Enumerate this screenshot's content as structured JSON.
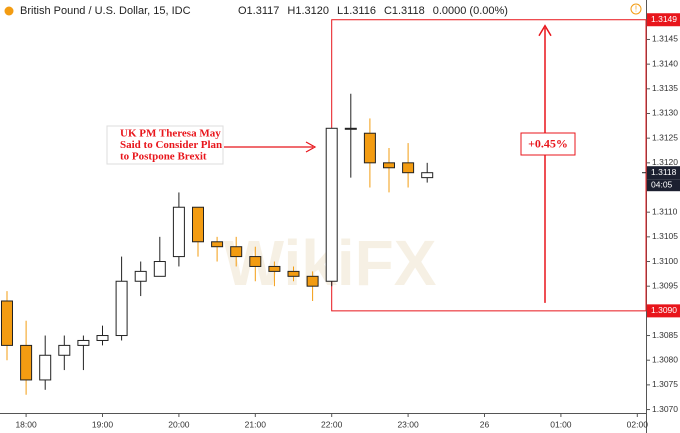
{
  "chart_data": {
    "type": "candlestick",
    "title": "British Pound / U.S. Dollar, 15, IDC",
    "header_values": [
      "O1.3117",
      "H1.3120",
      "L1.3116",
      "C1.3118",
      "0.0000 (0.00%)"
    ],
    "categories": [
      null,
      "18:00",
      null,
      null,
      null,
      "19:00",
      null,
      null,
      null,
      "20:00",
      null,
      null,
      null,
      "21:00",
      null,
      null,
      null,
      "22:00",
      null,
      null,
      null,
      "23:00",
      null,
      null,
      null,
      "26",
      null,
      null,
      null,
      "01:00",
      null,
      null,
      null,
      "02:00"
    ],
    "open": [
      1.3092,
      1.3083,
      1.3076,
      1.3081,
      1.3083,
      1.3084,
      1.3085,
      1.3096,
      1.3097,
      1.3101,
      1.3111,
      1.3104,
      1.3103,
      1.3101,
      1.3099,
      1.3098,
      1.3097,
      1.3096,
      1.3127,
      1.3126,
      1.312,
      1.312,
      1.3117,
      null,
      null,
      null,
      null,
      null,
      null,
      null,
      null,
      null,
      null,
      null
    ],
    "high": [
      1.3094,
      1.3088,
      1.3085,
      1.3085,
      1.3085,
      1.3087,
      1.3101,
      1.31,
      1.3105,
      1.3114,
      1.3111,
      1.3105,
      1.3105,
      1.3103,
      1.31,
      1.3099,
      1.3098,
      1.3127,
      1.3134,
      1.3129,
      1.3123,
      1.3124,
      1.312,
      null,
      null,
      null,
      null,
      null,
      null,
      null,
      null,
      null,
      null,
      null
    ],
    "low": [
      1.308,
      1.3073,
      1.3074,
      1.3078,
      1.3078,
      1.3083,
      1.3084,
      1.3093,
      1.3097,
      1.3099,
      1.3101,
      1.31,
      1.3099,
      1.3096,
      1.3095,
      1.3096,
      1.3092,
      1.3095,
      1.3117,
      1.3115,
      1.3114,
      1.3115,
      1.3116,
      null,
      null,
      null,
      null,
      null,
      null,
      null,
      null,
      null,
      null,
      null
    ],
    "close": [
      1.3083,
      1.3076,
      1.3081,
      1.3083,
      1.3084,
      1.3085,
      1.3096,
      1.3098,
      1.31,
      1.3111,
      1.3104,
      1.3103,
      1.3101,
      1.3099,
      1.3098,
      1.3097,
      1.3095,
      1.3127,
      1.3127,
      1.312,
      1.3119,
      1.3118,
      1.3118,
      null,
      null,
      null,
      null,
      null,
      null,
      null,
      null,
      null,
      null,
      null
    ],
    "up_color": "#ffffff",
    "down_color": "#f39c12",
    "ylim": [
      1.30693,
      1.3153
    ],
    "yticks": [
      {
        "value": 1.307,
        "label": "1.3070"
      },
      {
        "value": 1.3075,
        "label": "1.3075"
      },
      {
        "value": 1.308,
        "label": "1.3080"
      },
      {
        "value": 1.3085,
        "label": "1.3085"
      },
      {
        "value": 1.309,
        "label": "1.3090"
      },
      {
        "value": 1.3095,
        "label": "1.3095"
      },
      {
        "value": 1.31,
        "label": "1.3100"
      },
      {
        "value": 1.3105,
        "label": "1.3105"
      },
      {
        "value": 1.311,
        "label": "1.3110"
      },
      {
        "value": 1.3115,
        "label": "1.3115"
      },
      {
        "value": 1.312,
        "label": "1.3120"
      },
      {
        "value": 1.3125,
        "label": "1.3125"
      },
      {
        "value": 1.313,
        "label": "1.3130"
      },
      {
        "value": 1.3135,
        "label": "1.3135"
      },
      {
        "value": 1.314,
        "label": "1.3140"
      },
      {
        "value": 1.3145,
        "label": "1.3145"
      }
    ],
    "range_high": {
      "value": 1.3149,
      "label": "1.3149"
    },
    "range_low": {
      "value": 1.309,
      "label": "1.3090"
    },
    "last_price": {
      "value": 1.3118,
      "label": "1.3118"
    },
    "countdown": "04:05",
    "range_color": "#e8151b",
    "change_label": "+0.45%",
    "annotation": [
      "UK PM Theresa May",
      "Said to Consider Plan",
      "to Postpone Brexit"
    ],
    "watermark": "WikiFX"
  }
}
